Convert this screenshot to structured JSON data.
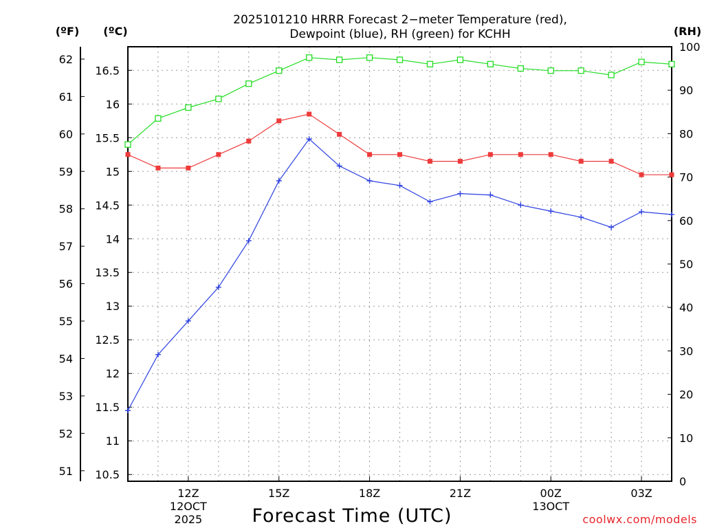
{
  "chart_data": {
    "type": "line",
    "title_line1": "2025101210 HRRR Forecast 2−meter Temperature (red),",
    "title_line2": "Dewpoint (blue), RH (green) for KCHH",
    "xlabel": "Forecast Time (UTC)",
    "credit": "coolwx.com/models",
    "x_hours": [
      10,
      11,
      12,
      13,
      14,
      15,
      16,
      17,
      18,
      19,
      20,
      21,
      22,
      23,
      24,
      25,
      26,
      27,
      28
    ],
    "x_range": [
      10,
      28
    ],
    "x_ticks": [
      {
        "hour": 12,
        "label": "12Z",
        "sub1": "12OCT",
        "sub2": "2025"
      },
      {
        "hour": 15,
        "label": "15Z",
        "sub1": "",
        "sub2": ""
      },
      {
        "hour": 18,
        "label": "18Z",
        "sub1": "",
        "sub2": ""
      },
      {
        "hour": 21,
        "label": "21Z",
        "sub1": "",
        "sub2": ""
      },
      {
        "hour": 24,
        "label": "00Z",
        "sub1": "13OCT",
        "sub2": ""
      },
      {
        "hour": 27,
        "label": "03Z",
        "sub1": "",
        "sub2": ""
      }
    ],
    "left_axis_unit_f": "(ºF)",
    "left_axis_unit_c": "(ºC)",
    "right_axis_unit": "(RH)",
    "celsius_range": [
      10.4,
      16.85
    ],
    "celsius_ticks": [
      "10.5",
      "11",
      "11.5",
      "12",
      "12.5",
      "13",
      "13.5",
      "14",
      "14.5",
      "15",
      "15.5",
      "16",
      "16.5"
    ],
    "fahrenheit_ticks": [
      "51",
      "52",
      "53",
      "54",
      "55",
      "56",
      "57",
      "58",
      "59",
      "60",
      "61",
      "62"
    ],
    "rh_range": [
      0,
      100
    ],
    "rh_ticks": [
      "0",
      "10",
      "20",
      "30",
      "40",
      "50",
      "60",
      "70",
      "80",
      "90",
      "100"
    ],
    "series": [
      {
        "name": "Temperature",
        "unit": "°C",
        "color": "#ee3b3b",
        "marker": "filled-square",
        "values": [
          15.25,
          15.05,
          15.05,
          15.25,
          15.45,
          15.75,
          15.85,
          15.55,
          15.25,
          15.25,
          15.15,
          15.15,
          15.25,
          15.25,
          15.25,
          15.15,
          15.15,
          14.95,
          14.95
        ]
      },
      {
        "name": "Dewpoint",
        "unit": "°C",
        "color": "#2b3fe0",
        "marker": "plus",
        "values": [
          11.45,
          12.28,
          12.78,
          13.28,
          13.97,
          14.86,
          15.48,
          15.08,
          14.86,
          14.79,
          14.55,
          14.67,
          14.65,
          14.5,
          14.41,
          14.32,
          14.17,
          14.4,
          14.36
        ]
      },
      {
        "name": "RH",
        "unit": "%",
        "color": "#22dd22",
        "marker": "open-square",
        "values": [
          77.5,
          83.5,
          86,
          88,
          91.5,
          94.5,
          97.5,
          97,
          97.5,
          97,
          96,
          97,
          96,
          95,
          94.5,
          94.5,
          93.5,
          96.5,
          96
        ]
      }
    ]
  }
}
